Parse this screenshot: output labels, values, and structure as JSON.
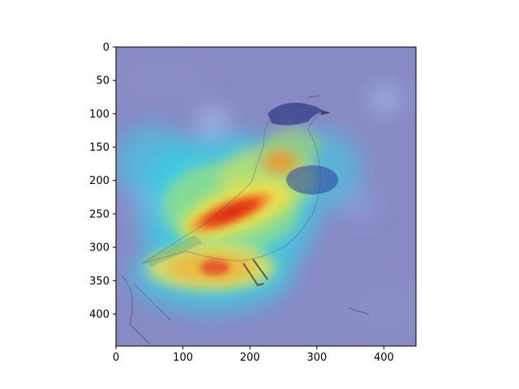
{
  "figure": {
    "image_description_icon": "bird-attention-heatmap",
    "colormap": "jet",
    "colors": {
      "background_low": "#7f82c2",
      "snow": "#d4d4e6",
      "heat_low": "#4b6bff",
      "heat_mid_cyan": "#35d1e6",
      "heat_yellow": "#f2e14a",
      "heat_orange": "#f0902a",
      "heat_red": "#d61e12",
      "bird_head_blue": "#1f2a7a"
    },
    "x_axis": {
      "range": [
        0,
        448
      ],
      "ticks": [
        "0",
        "100",
        "200",
        "300",
        "400"
      ],
      "tick_values": [
        0,
        100,
        200,
        300,
        400
      ]
    },
    "y_axis": {
      "range": [
        0,
        448
      ],
      "inverted": true,
      "ticks": [
        "0",
        "50",
        "100",
        "150",
        "200",
        "250",
        "300",
        "350",
        "400"
      ],
      "tick_values": [
        0,
        50,
        100,
        150,
        200,
        250,
        300,
        350,
        400
      ]
    }
  }
}
